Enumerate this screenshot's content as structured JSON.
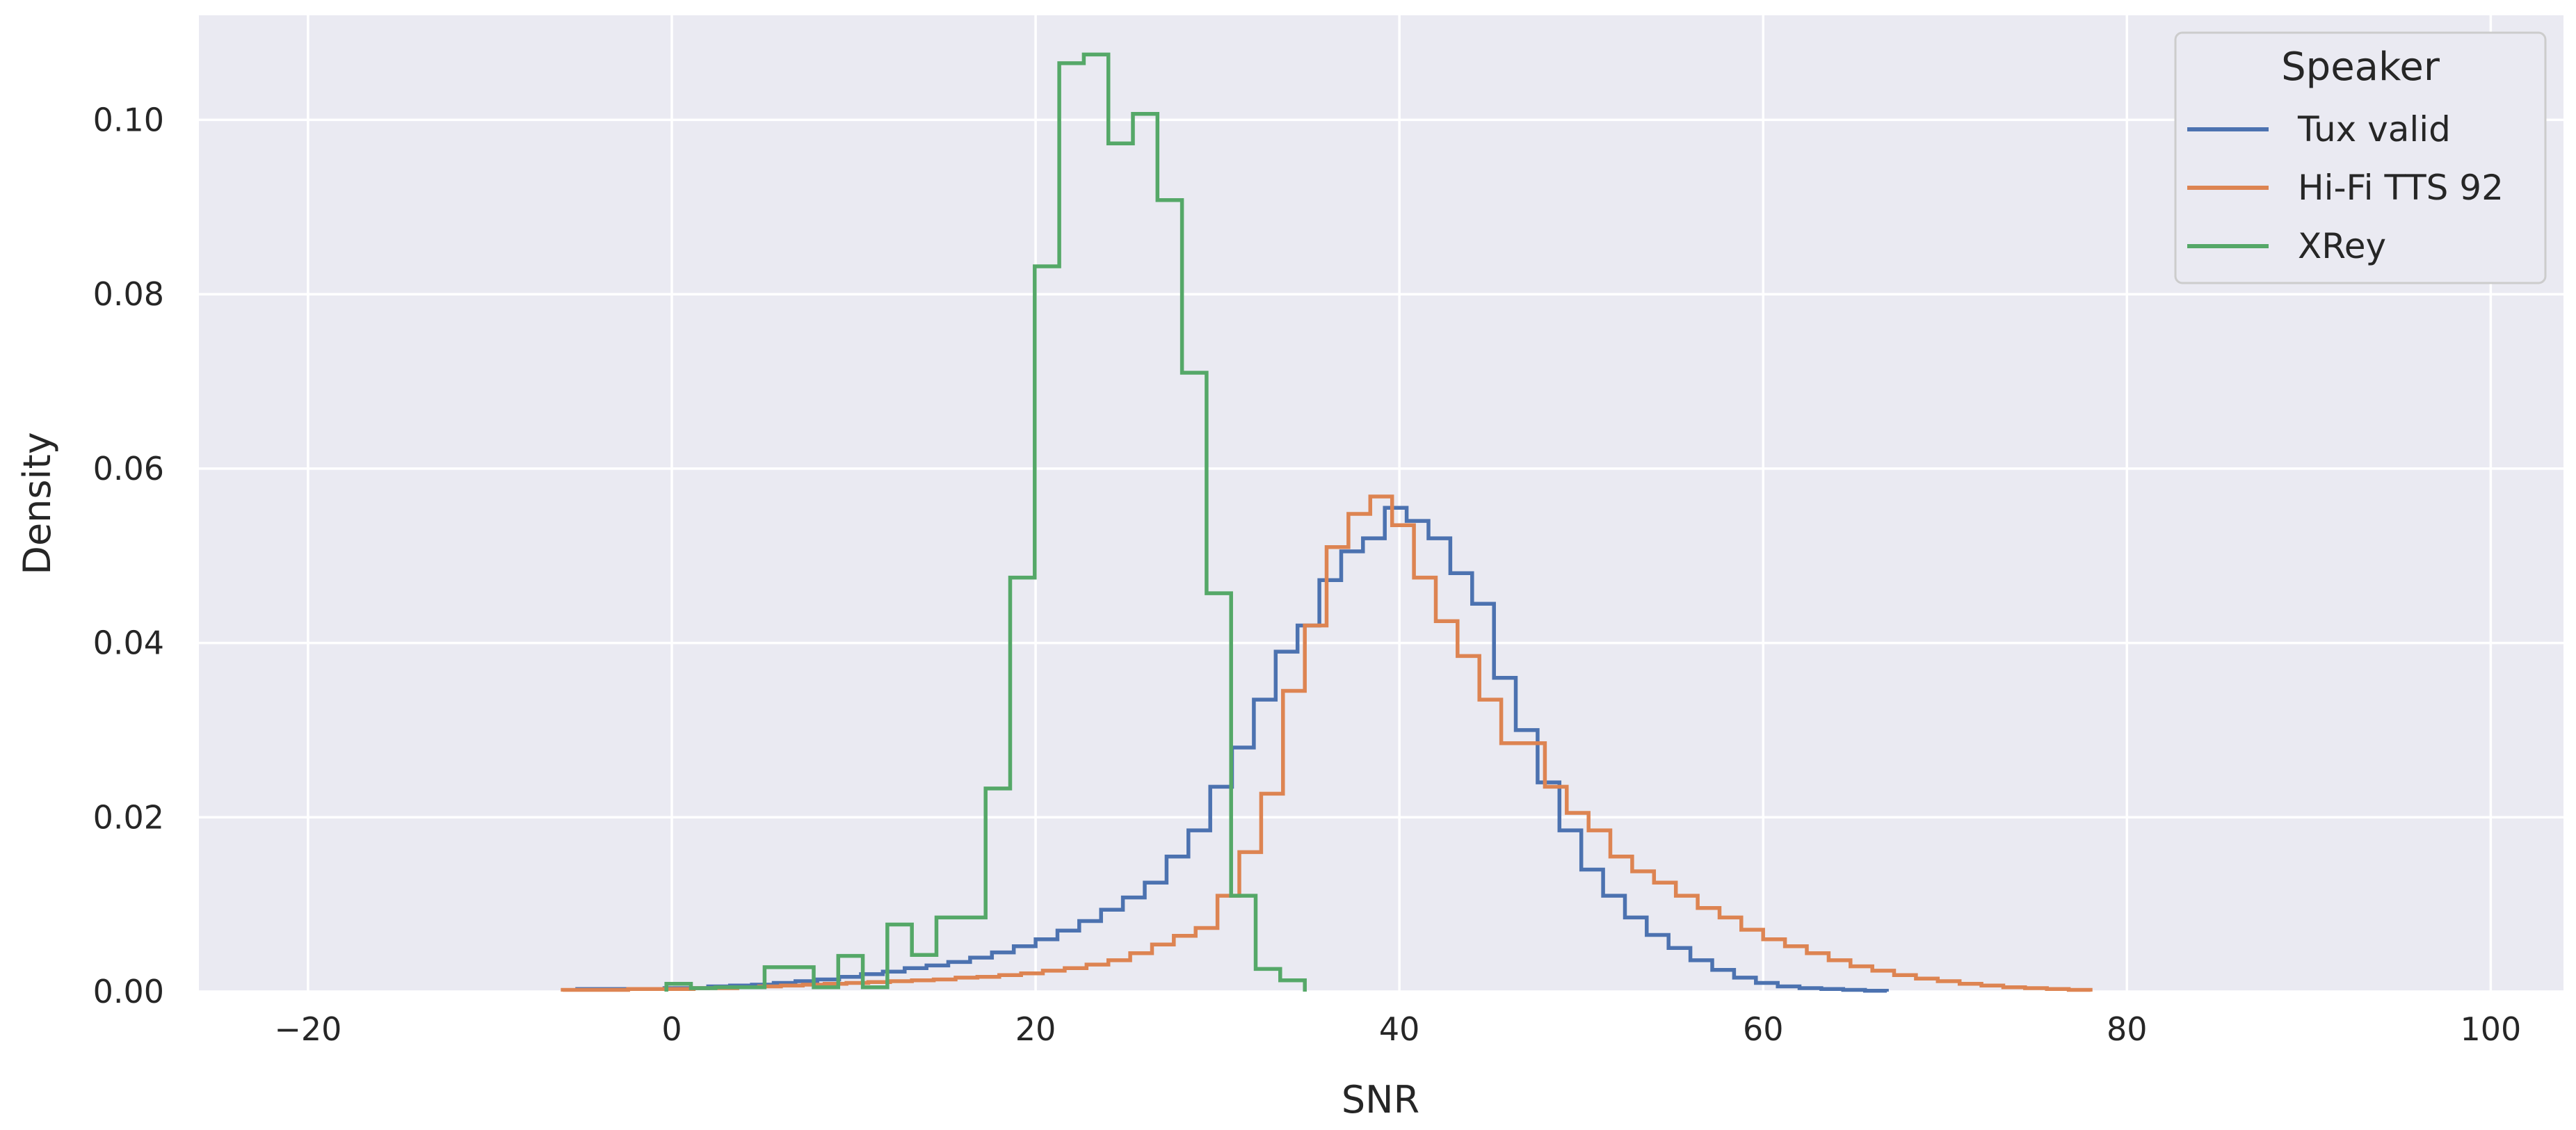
{
  "chart_data": {
    "type": "step-histogram",
    "xlabel": "SNR",
    "ylabel": "Density",
    "xlim": [
      -26,
      104
    ],
    "ylim": [
      0,
      0.112
    ],
    "xticks": [
      -20,
      0,
      20,
      40,
      60,
      80,
      100
    ],
    "xtick_labels": [
      "−20",
      "0",
      "20",
      "40",
      "60",
      "80",
      "100"
    ],
    "yticks": [
      0.0,
      0.02,
      0.04,
      0.06,
      0.08,
      0.1
    ],
    "ytick_labels": [
      "0.00",
      "0.02",
      "0.04",
      "0.06",
      "0.08",
      "0.10"
    ],
    "grid": true,
    "legend": {
      "title": "Speaker",
      "placement": "top-right"
    },
    "series": [
      {
        "name": "Tux valid",
        "color": "#4c72b0",
        "x_start": -5.2,
        "bin_width": 1.2,
        "values": [
          0.0003,
          0.0003,
          0.0003,
          0.0003,
          0.0004,
          0.0004,
          0.0006,
          0.0007,
          0.0008,
          0.001,
          0.0012,
          0.0014,
          0.0017,
          0.002,
          0.0023,
          0.0027,
          0.003,
          0.0034,
          0.0039,
          0.0045,
          0.0052,
          0.006,
          0.007,
          0.0081,
          0.0094,
          0.0108,
          0.0125,
          0.0155,
          0.0185,
          0.0235,
          0.028,
          0.0335,
          0.039,
          0.042,
          0.0472,
          0.0505,
          0.052,
          0.0555,
          0.054,
          0.052,
          0.048,
          0.0445,
          0.036,
          0.03,
          0.024,
          0.0185,
          0.014,
          0.011,
          0.0085,
          0.0065,
          0.005,
          0.0036,
          0.0025,
          0.0016,
          0.001,
          0.0006,
          0.0004,
          0.0003,
          0.0002,
          0.0001
        ]
      },
      {
        "name": "Hi-Fi TTS 92",
        "color": "#dd8452",
        "x_start": -6.0,
        "bin_width": 1.2,
        "values": [
          0.0002,
          0.0002,
          0.0002,
          0.0003,
          0.0003,
          0.0003,
          0.0004,
          0.0004,
          0.0005,
          0.0006,
          0.0007,
          0.0008,
          0.0009,
          0.001,
          0.0011,
          0.0012,
          0.0013,
          0.0014,
          0.0016,
          0.0017,
          0.0019,
          0.0021,
          0.0024,
          0.0027,
          0.0031,
          0.0036,
          0.0044,
          0.0054,
          0.0064,
          0.0073,
          0.011,
          0.016,
          0.0227,
          0.0345,
          0.042,
          0.051,
          0.0548,
          0.0568,
          0.0535,
          0.0475,
          0.0425,
          0.0385,
          0.0335,
          0.0285,
          0.0285,
          0.0235,
          0.0205,
          0.0185,
          0.0155,
          0.0138,
          0.0125,
          0.011,
          0.0096,
          0.0085,
          0.0071,
          0.006,
          0.0052,
          0.0044,
          0.0036,
          0.0029,
          0.0024,
          0.0019,
          0.0015,
          0.0012,
          0.0009,
          0.0007,
          0.0005,
          0.0004,
          0.0003,
          0.0002
        ]
      },
      {
        "name": "XRey",
        "color": "#55a868",
        "x_start": -0.3,
        "bin_width": 1.35,
        "values": [
          0.0009,
          0.0004,
          0.0005,
          0.0005,
          0.0028,
          0.0028,
          0.0005,
          0.0041,
          0.0005,
          0.0077,
          0.0042,
          0.0085,
          0.0085,
          0.0233,
          0.0475,
          0.0832,
          0.1065,
          0.1075,
          0.0973,
          0.1007,
          0.0908,
          0.071,
          0.0457,
          0.011,
          0.0026,
          0.0013
        ]
      }
    ]
  }
}
